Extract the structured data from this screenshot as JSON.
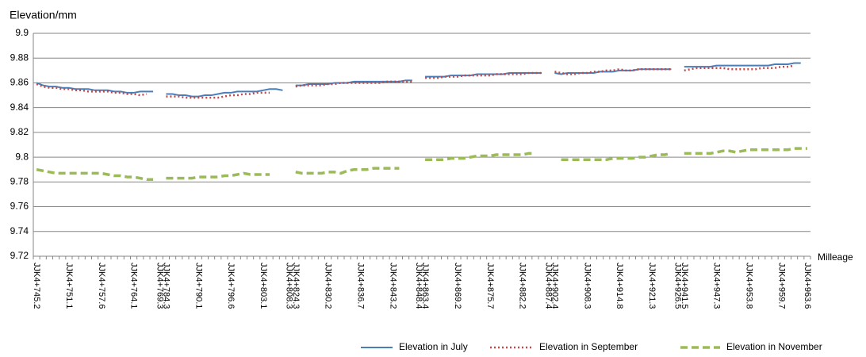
{
  "chart_data": {
    "type": "line",
    "y_label": "Elevation/mm",
    "x_label": "Milleage",
    "ylim": [
      9.72,
      9.9
    ],
    "yticks": [
      9.72,
      9.74,
      9.76,
      9.78,
      9.8,
      9.82,
      9.84,
      9.86,
      9.88,
      9.9
    ],
    "grid": true,
    "legend": "bottom",
    "categories": [
      "JJK4+745.2",
      null,
      null,
      null,
      null,
      "JJK4+751.1",
      null,
      null,
      null,
      null,
      "JJK4+757.6",
      null,
      null,
      null,
      null,
      "JJK4+764.1",
      null,
      null,
      null,
      "JJK4+769.3",
      "JJK4+784.3",
      null,
      null,
      null,
      null,
      "JJK4+790.1",
      null,
      null,
      null,
      null,
      "JJK4+796.6",
      null,
      null,
      null,
      null,
      "JJK4+803.1",
      null,
      null,
      null,
      "JJK4+808.3",
      "JJK4+824.3",
      null,
      null,
      null,
      null,
      "JJK4+830.2",
      null,
      null,
      null,
      null,
      "JJK4+836.7",
      null,
      null,
      null,
      null,
      "JJK4+843.2",
      null,
      null,
      null,
      "JJK4+848.4",
      "JJK4+863.4",
      null,
      null,
      null,
      null,
      "JJK4+869.2",
      null,
      null,
      null,
      null,
      "JJK4+875.7",
      null,
      null,
      null,
      null,
      "JJK4+882.2",
      null,
      null,
      null,
      "JJK4+887.4",
      "JJK4+902.4",
      null,
      null,
      null,
      null,
      "JJK4+908.3",
      null,
      null,
      null,
      null,
      "JJK4+914.8",
      null,
      null,
      null,
      null,
      "JJK4+921.3",
      null,
      null,
      null,
      "JJK4+926.5",
      "JJK4+941.5",
      null,
      null,
      null,
      null,
      "JJK4+947.3",
      null,
      null,
      null,
      null,
      "JJK4+953.8",
      null,
      null,
      null,
      null,
      "JJK4+959.7",
      null,
      null,
      null,
      "JJK4+963.6"
    ],
    "series": [
      {
        "name": "Elevation in July",
        "color": "#4a7ebb",
        "style": "solid",
        "values": [
          9.86,
          9.858,
          9.857,
          9.857,
          9.856,
          9.856,
          9.855,
          9.855,
          9.855,
          9.854,
          9.854,
          9.854,
          9.853,
          9.853,
          9.852,
          9.852,
          9.853,
          9.853,
          9.853,
          null,
          9.851,
          9.851,
          9.85,
          9.85,
          9.849,
          9.849,
          9.85,
          9.85,
          9.851,
          9.852,
          9.852,
          9.853,
          9.853,
          9.853,
          9.853,
          9.854,
          9.855,
          9.855,
          9.854,
          null,
          9.858,
          9.858,
          9.859,
          9.859,
          9.859,
          9.859,
          9.86,
          9.86,
          9.86,
          9.861,
          9.861,
          9.861,
          9.861,
          9.861,
          9.861,
          9.861,
          9.861,
          9.862,
          9.862,
          null,
          9.865,
          9.865,
          9.865,
          9.865,
          9.866,
          9.866,
          9.866,
          9.866,
          9.867,
          9.867,
          9.867,
          9.867,
          9.867,
          9.868,
          9.868,
          9.868,
          9.868,
          9.868,
          9.868,
          null,
          9.868,
          9.867,
          9.868,
          9.868,
          9.868,
          9.868,
          9.868,
          9.869,
          9.869,
          9.869,
          9.87,
          9.87,
          9.87,
          9.871,
          9.871,
          9.871,
          9.871,
          9.871,
          9.871,
          null,
          9.873,
          9.873,
          9.873,
          9.873,
          9.873,
          9.874,
          9.874,
          9.874,
          9.874,
          9.874,
          9.874,
          9.874,
          9.874,
          9.874,
          9.875,
          9.875,
          9.875,
          9.876,
          9.876,
          null
        ]
      },
      {
        "name": "Elevation in September",
        "color": "#be4b48",
        "style": "dotted",
        "values": [
          9.859,
          9.857,
          9.856,
          9.856,
          9.855,
          9.855,
          9.854,
          9.854,
          9.853,
          9.853,
          9.853,
          9.853,
          9.852,
          9.852,
          9.851,
          9.851,
          9.85,
          9.851,
          null,
          null,
          9.849,
          9.849,
          9.849,
          9.848,
          9.848,
          9.848,
          9.848,
          9.848,
          9.848,
          9.849,
          9.85,
          9.85,
          9.851,
          9.851,
          9.852,
          9.852,
          9.852,
          null,
          null,
          null,
          9.857,
          9.858,
          9.858,
          9.858,
          9.858,
          9.859,
          9.859,
          9.86,
          9.86,
          9.86,
          9.86,
          9.86,
          9.86,
          9.86,
          9.861,
          9.861,
          9.861,
          9.861,
          9.861,
          null,
          9.864,
          9.864,
          9.864,
          9.865,
          9.865,
          9.865,
          9.866,
          9.866,
          9.866,
          9.866,
          9.866,
          9.867,
          9.867,
          9.867,
          9.867,
          9.867,
          9.868,
          9.868,
          9.868,
          null,
          9.869,
          9.868,
          9.867,
          9.867,
          9.868,
          9.868,
          9.869,
          9.869,
          9.87,
          9.87,
          9.871,
          9.87,
          9.87,
          9.871,
          9.871,
          9.871,
          9.871,
          9.871,
          9.871,
          null,
          9.87,
          9.871,
          9.872,
          9.872,
          9.872,
          9.872,
          9.872,
          9.871,
          9.871,
          9.871,
          9.871,
          9.871,
          9.872,
          9.872,
          9.872,
          9.873,
          9.873,
          9.874,
          null,
          null
        ]
      },
      {
        "name": "Elevation in November",
        "color": "#9bbb59",
        "style": "dashed",
        "values": [
          9.79,
          9.789,
          9.788,
          9.787,
          9.787,
          9.787,
          9.787,
          9.787,
          9.787,
          9.787,
          9.787,
          9.786,
          9.785,
          9.785,
          9.784,
          9.784,
          9.783,
          9.782,
          9.782,
          null,
          9.783,
          9.783,
          9.783,
          9.783,
          9.783,
          9.784,
          9.784,
          9.784,
          9.784,
          9.785,
          9.785,
          9.786,
          9.787,
          9.786,
          9.786,
          9.786,
          9.786,
          null,
          null,
          null,
          9.788,
          9.787,
          9.787,
          9.787,
          9.787,
          9.788,
          9.788,
          9.787,
          9.789,
          9.79,
          9.79,
          9.79,
          9.791,
          9.791,
          9.791,
          9.791,
          9.791,
          null,
          null,
          null,
          9.798,
          9.798,
          9.798,
          9.798,
          9.799,
          9.799,
          9.799,
          9.8,
          9.801,
          9.801,
          9.801,
          9.802,
          9.802,
          9.802,
          9.802,
          9.802,
          9.803,
          9.803,
          null,
          null,
          null,
          9.798,
          9.798,
          9.798,
          9.798,
          9.798,
          9.798,
          9.798,
          9.798,
          9.799,
          9.799,
          9.799,
          9.799,
          9.8,
          9.8,
          9.801,
          9.802,
          9.802,
          9.803,
          null,
          9.803,
          9.803,
          9.803,
          9.803,
          9.803,
          9.804,
          9.805,
          9.805,
          9.804,
          9.805,
          9.806,
          9.806,
          9.806,
          9.806,
          9.806,
          9.806,
          9.806,
          9.807,
          9.807,
          9.807
        ]
      }
    ]
  }
}
